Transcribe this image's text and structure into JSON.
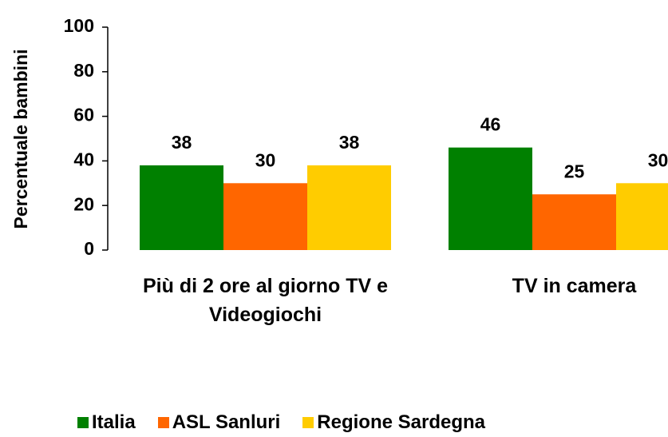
{
  "chart_data": {
    "type": "bar",
    "y_label": "Percentuale bambini",
    "categories": [
      "Più di 2 ore al giorno TV e Videogiochi",
      "TV in camera"
    ],
    "series": [
      {
        "name": "Italia",
        "color": "#008000",
        "values": [
          38,
          46
        ]
      },
      {
        "name": "ASL Sanluri",
        "color": "#ff6600",
        "values": [
          30,
          25
        ]
      },
      {
        "name": "Regione Sardegna",
        "color": "#ffcc00",
        "values": [
          38,
          30
        ]
      }
    ],
    "ylim": [
      0,
      100
    ],
    "yticks": [
      0,
      20,
      40,
      60,
      80,
      100
    ],
    "grid": false,
    "legend": "bottom"
  }
}
